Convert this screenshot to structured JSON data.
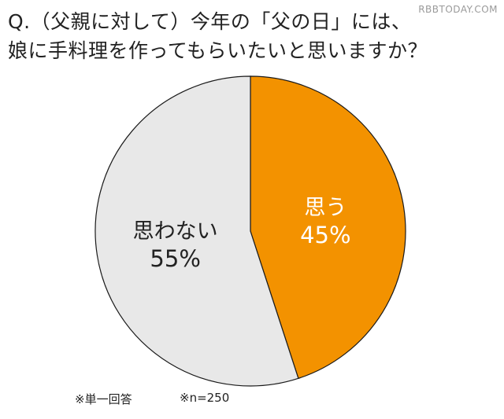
{
  "watermark": "RBBTODAY.COM",
  "question": {
    "line1": "Q.（父親に対して）今年の「父の日」には、",
    "line2": "娘に手料理を作ってもらいたいと思いますか？"
  },
  "footnotes": {
    "answer_type": "※単一回答",
    "sample_size": "※n=250"
  },
  "colors": {
    "yes": "#f39200",
    "no": "#e8e8e8",
    "yes_text": "#ffffff",
    "no_text": "#222222",
    "outline": "#1a1a1a"
  },
  "chart_data": {
    "type": "pie",
    "title": "Q.（父親に対して）今年の「父の日」には、娘に手料理を作ってもらいたいと思いますか？",
    "start": "12 o'clock",
    "direction": "clockwise",
    "slices": [
      {
        "label": "思う",
        "value": 45,
        "value_label": "45%",
        "color": "#f39200"
      },
      {
        "label": "思わない",
        "value": 55,
        "value_label": "55%",
        "color": "#e8e8e8"
      }
    ],
    "legend": "none",
    "notes": [
      "※単一回答",
      "※n=250"
    ]
  }
}
